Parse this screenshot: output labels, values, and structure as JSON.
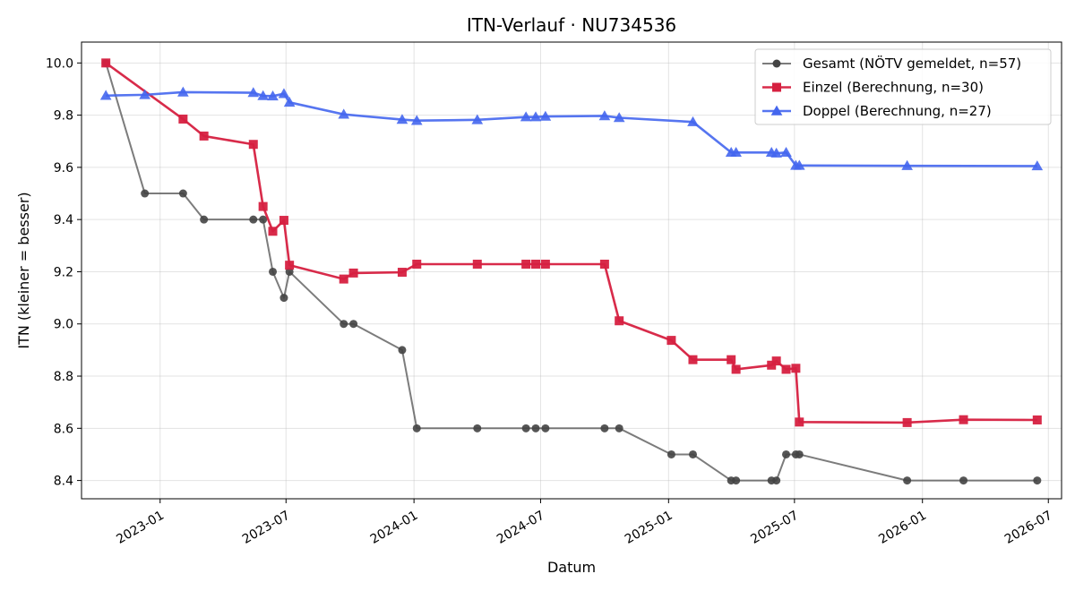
{
  "chart_data": {
    "type": "line",
    "title": "ITN-Verlauf · NU734536",
    "xlabel": "Datum",
    "ylabel": "ITN  (kleiner = besser)",
    "x_range": [
      "2022-09-10",
      "2026-07-20"
    ],
    "ylim": [
      8.33,
      10.08
    ],
    "x_ticks": [
      {
        "date": "2023-01-01",
        "label": "2023-01"
      },
      {
        "date": "2023-07-01",
        "label": "2023-07"
      },
      {
        "date": "2024-01-01",
        "label": "2024-01"
      },
      {
        "date": "2024-07-01",
        "label": "2024-07"
      },
      {
        "date": "2025-01-01",
        "label": "2025-01"
      },
      {
        "date": "2025-07-01",
        "label": "2025-07"
      },
      {
        "date": "2026-01-01",
        "label": "2026-01"
      },
      {
        "date": "2026-07-01",
        "label": "2026-07"
      }
    ],
    "y_ticks": [
      8.4,
      8.6,
      8.8,
      9.0,
      9.2,
      9.4,
      9.6,
      9.8,
      10.0
    ],
    "y_tick_labels": [
      "8.4",
      "8.6",
      "8.8",
      "9.0",
      "9.2",
      "9.4",
      "9.6",
      "9.8",
      "10.0"
    ],
    "grid": true,
    "legend_position": "top-right",
    "series": [
      {
        "name": "Gesamt (NÖTV gemeldet, n=57)",
        "color": "#444444",
        "marker": "circle",
        "points": [
          [
            "2022-10-15",
            10.0
          ],
          [
            "2022-12-10",
            9.5
          ],
          [
            "2023-02-03",
            9.5
          ],
          [
            "2023-03-05",
            9.4
          ],
          [
            "2023-05-15",
            9.4
          ],
          [
            "2023-05-29",
            9.4
          ],
          [
            "2023-06-12",
            9.2
          ],
          [
            "2023-06-28",
            9.1
          ],
          [
            "2023-07-06",
            9.2
          ],
          [
            "2023-09-22",
            9.0
          ],
          [
            "2023-10-06",
            9.0
          ],
          [
            "2023-12-15",
            8.9
          ],
          [
            "2024-01-05",
            8.6
          ],
          [
            "2024-04-01",
            8.6
          ],
          [
            "2024-06-10",
            8.6
          ],
          [
            "2024-06-24",
            8.6
          ],
          [
            "2024-07-08",
            8.6
          ],
          [
            "2024-10-01",
            8.6
          ],
          [
            "2024-10-22",
            8.6
          ],
          [
            "2025-01-05",
            8.5
          ],
          [
            "2025-02-05",
            8.5
          ],
          [
            "2025-04-01",
            8.4
          ],
          [
            "2025-04-08",
            8.4
          ],
          [
            "2025-05-29",
            8.4
          ],
          [
            "2025-06-05",
            8.4
          ],
          [
            "2025-06-19",
            8.5
          ],
          [
            "2025-07-03",
            8.5
          ],
          [
            "2025-07-08",
            8.5
          ],
          [
            "2025-12-10",
            8.4
          ],
          [
            "2026-03-01",
            8.4
          ],
          [
            "2026-06-15",
            8.4
          ]
        ]
      },
      {
        "name": "Einzel (Berechnung, n=30)",
        "color": "#d62040",
        "marker": "square",
        "points": [
          [
            "2022-10-15",
            10.0
          ],
          [
            "2023-02-03",
            9.785
          ],
          [
            "2023-03-05",
            9.72
          ],
          [
            "2023-05-15",
            9.688
          ],
          [
            "2023-05-29",
            9.45
          ],
          [
            "2023-06-12",
            9.355
          ],
          [
            "2023-06-28",
            9.397
          ],
          [
            "2023-07-06",
            9.225
          ],
          [
            "2023-09-22",
            9.172
          ],
          [
            "2023-10-06",
            9.195
          ],
          [
            "2023-12-15",
            9.198
          ],
          [
            "2024-01-05",
            9.229
          ],
          [
            "2024-04-01",
            9.229
          ],
          [
            "2024-06-10",
            9.229
          ],
          [
            "2024-06-24",
            9.229
          ],
          [
            "2024-07-08",
            9.229
          ],
          [
            "2024-10-01",
            9.229
          ],
          [
            "2024-10-22",
            9.012
          ],
          [
            "2025-01-05",
            8.937
          ],
          [
            "2025-02-05",
            8.863
          ],
          [
            "2025-04-01",
            8.863
          ],
          [
            "2025-04-08",
            8.826
          ],
          [
            "2025-05-29",
            8.842
          ],
          [
            "2025-06-05",
            8.858
          ],
          [
            "2025-06-19",
            8.826
          ],
          [
            "2025-07-03",
            8.83
          ],
          [
            "2025-07-08",
            8.624
          ],
          [
            "2025-12-10",
            8.622
          ],
          [
            "2026-03-01",
            8.633
          ],
          [
            "2026-06-15",
            8.632
          ]
        ]
      },
      {
        "name": "Doppel (Berechnung, n=27)",
        "color": "#4466ee",
        "marker": "triangle",
        "points": [
          [
            "2022-10-15",
            9.875
          ],
          [
            "2022-12-10",
            9.878
          ],
          [
            "2023-02-03",
            9.888
          ],
          [
            "2023-05-15",
            9.886
          ],
          [
            "2023-05-29",
            9.874
          ],
          [
            "2023-06-12",
            9.873
          ],
          [
            "2023-06-28",
            9.882
          ],
          [
            "2023-07-06",
            9.849
          ],
          [
            "2023-09-22",
            9.803
          ],
          [
            "2023-12-15",
            9.783
          ],
          [
            "2024-01-05",
            9.779
          ],
          [
            "2024-04-01",
            9.782
          ],
          [
            "2024-06-10",
            9.793
          ],
          [
            "2024-06-24",
            9.793
          ],
          [
            "2024-07-08",
            9.795
          ],
          [
            "2024-10-01",
            9.797
          ],
          [
            "2024-10-22",
            9.79
          ],
          [
            "2025-02-05",
            9.774
          ],
          [
            "2025-04-01",
            9.657
          ],
          [
            "2025-04-08",
            9.657
          ],
          [
            "2025-05-29",
            9.657
          ],
          [
            "2025-06-05",
            9.654
          ],
          [
            "2025-06-19",
            9.657
          ],
          [
            "2025-07-03",
            9.607
          ],
          [
            "2025-07-08",
            9.607
          ],
          [
            "2025-12-10",
            9.606
          ],
          [
            "2026-06-15",
            9.605
          ]
        ]
      }
    ]
  }
}
